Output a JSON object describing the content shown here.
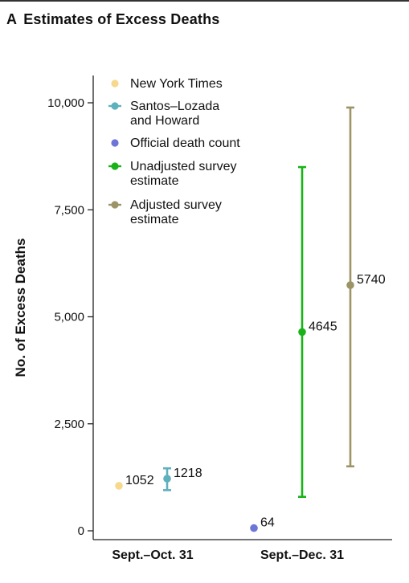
{
  "header": {
    "panel_letter": "A",
    "title": "Estimates of Excess Deaths"
  },
  "chart_data": {
    "type": "scatter",
    "title": "Estimates of Excess Deaths",
    "ylabel": "No. of Excess Deaths",
    "xlabel": "",
    "ylim": [
      0,
      10500
    ],
    "yticks": [
      0,
      2500,
      5000,
      7500,
      10000
    ],
    "ytick_labels": [
      "0",
      "2,500",
      "5,000",
      "7,500",
      "10,000"
    ],
    "categories": [
      "Sept.–Oct. 31",
      "Sept.–Dec. 31"
    ],
    "grid": false,
    "legend_position": "top-left",
    "series": [
      {
        "name": "New York Times",
        "color": "#f6d98c",
        "category": "Sept.–Oct. 31",
        "value": 1052,
        "label": "1052"
      },
      {
        "name": "Santos–Lozada and Howard",
        "legend_lines": [
          "Santos–Lozada",
          "and Howard"
        ],
        "color": "#5fb0bd",
        "category": "Sept.–Oct. 31",
        "value": 1218,
        "low": 950,
        "high": 1460,
        "label": "1218"
      },
      {
        "name": "Official death count",
        "color": "#6d75d8",
        "category": "Sept.–Dec. 31",
        "value": 64,
        "label": "64"
      },
      {
        "name": "Unadjusted survey estimate",
        "legend_lines": [
          "Unadjusted survey",
          "estimate"
        ],
        "color": "#1ab21a",
        "category": "Sept.–Dec. 31",
        "value": 4645,
        "low": 793,
        "high": 8498,
        "label": "4645"
      },
      {
        "name": "Adjusted survey estimate",
        "legend_lines": [
          "Adjusted survey",
          "estimate"
        ],
        "color": "#9c9466",
        "category": "Sept.–Dec. 31",
        "value": 5740,
        "low": 1506,
        "high": 9889,
        "label": "5740"
      }
    ]
  }
}
